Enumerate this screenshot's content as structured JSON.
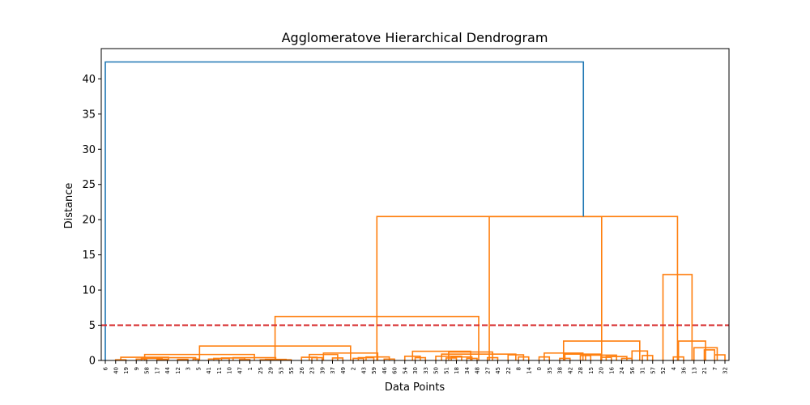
{
  "chart_data": {
    "type": "dendrogram",
    "title": "Agglomeratove Hierarchical Dendrogram",
    "xlabel": "Data Points",
    "ylabel": "Distance",
    "ylim": [
      0,
      44.3
    ],
    "y_ticks": [
      0,
      5,
      10,
      15,
      20,
      25,
      30,
      35,
      40
    ],
    "threshold": 5,
    "colors": {
      "above_threshold": "#1f77b4",
      "cluster": "#ff7f0e",
      "threshold": "#d62728"
    },
    "leaves": [
      "6",
      "40",
      "19",
      "9",
      "58",
      "17",
      "44",
      "12",
      "3",
      "5",
      "41",
      "11",
      "10",
      "47",
      "1",
      "25",
      "29",
      "53",
      "55",
      "26",
      "23",
      "39",
      "37",
      "49",
      "2",
      "43",
      "59",
      "46",
      "60",
      "54",
      "30",
      "33",
      "50",
      "51",
      "18",
      "34",
      "48",
      "27",
      "45",
      "22",
      "8",
      "14",
      "0",
      "35",
      "38",
      "42",
      "28",
      "15",
      "20",
      "16",
      "24",
      "56",
      "31",
      "57",
      "52",
      "4",
      "36",
      "13",
      "21",
      "7",
      "32"
    ],
    "links": [
      {
        "a": [
          3,
          4
        ],
        "h": 0.2
      },
      {
        "a": [
          5,
          6
        ],
        "h": 0.15
      },
      {
        "a": [
          7,
          8
        ],
        "h": 0.15
      },
      {
        "a": [
          8.5,
          9
        ],
        "h": 0.2
      },
      {
        "a": [
          3.5,
          5.5
        ],
        "h": 0.3
      },
      {
        "a": [
          3.5,
          8.75
        ],
        "h": 0.4
      },
      {
        "a": [
          1,
          2
        ],
        "h": 0.1
      },
      {
        "a": [
          1.5,
          6.125
        ],
        "h": 0.45
      },
      {
        "a": [
          10,
          11
        ],
        "h": 0.2
      },
      {
        "a": [
          10.5,
          12
        ],
        "h": 0.3
      },
      {
        "a": [
          13,
          14
        ],
        "h": 0.12
      },
      {
        "a": [
          11.25,
          13.5
        ],
        "h": 0.35
      },
      {
        "a": [
          15,
          16
        ],
        "h": 0.1
      },
      {
        "a": [
          17,
          18
        ],
        "h": 0.1
      },
      {
        "a": [
          15.5,
          17.5
        ],
        "h": 0.15
      },
      {
        "a": [
          12.375,
          16.5
        ],
        "h": 0.4
      },
      {
        "a": [
          3.8125,
          14.4375
        ],
        "h": 0.85
      },
      {
        "a": [
          20,
          21
        ],
        "h": 0.4
      },
      {
        "a": [
          19,
          20.5
        ],
        "h": 0.45
      },
      {
        "a": [
          22,
          23
        ],
        "h": 0.35
      },
      {
        "a": [
          19.75,
          22.5
        ],
        "h": 0.85
      },
      {
        "a": [
          24,
          25
        ],
        "h": 0.3
      },
      {
        "a": [
          24.5,
          26
        ],
        "h": 0.4
      },
      {
        "a": [
          27,
          28
        ],
        "h": 0.2
      },
      {
        "a": [
          25.25,
          27.5
        ],
        "h": 0.5
      },
      {
        "a": [
          21.125,
          26.375
        ],
        "h": 1.05
      },
      {
        "a": [
          9.125,
          23.75
        ],
        "h": 2.05
      },
      {
        "a": [
          30,
          31
        ],
        "h": 0.4
      },
      {
        "a": [
          29,
          30.5
        ],
        "h": 0.6
      },
      {
        "a": [
          33,
          34
        ],
        "h": 0.35
      },
      {
        "a": [
          35,
          36
        ],
        "h": 0.3
      },
      {
        "a": [
          33.5,
          35.5
        ],
        "h": 0.5
      },
      {
        "a": [
          32,
          34.5
        ],
        "h": 0.6
      },
      {
        "a": [
          37,
          38
        ],
        "h": 0.4
      },
      {
        "a": [
          33.25,
          37.5
        ],
        "h": 1.2
      },
      {
        "a": [
          29.75,
          35.375
        ],
        "h": 1.3
      },
      {
        "a": [
          40,
          41
        ],
        "h": 0.5
      },
      {
        "a": [
          39,
          40.5
        ],
        "h": 0.8
      },
      {
        "a": [
          32.5625,
          39.75
        ],
        "h": 0.9
      },
      {
        "a": [
          16.4375,
          36.15625
        ],
        "h": 6.25
      },
      {
        "a": [
          42,
          43
        ],
        "h": 0.5
      },
      {
        "a": [
          44,
          45
        ],
        "h": 0.3
      },
      {
        "a": [
          46,
          47
        ],
        "h": 0.7
      },
      {
        "a": [
          48,
          49
        ],
        "h": 0.45
      },
      {
        "a": [
          50,
          51
        ],
        "h": 0.3
      },
      {
        "a": [
          48.5,
          50.5
        ],
        "h": 0.55
      },
      {
        "a": [
          46.5,
          49.5
        ],
        "h": 0.75
      },
      {
        "a": [
          44.5,
          48
        ],
        "h": 0.9
      },
      {
        "a": [
          42.5,
          46.25
        ],
        "h": 1.05
      },
      {
        "a": [
          52,
          53
        ],
        "h": 0.7
      },
      {
        "a": [
          51,
          52.5
        ],
        "h": 1.35
      },
      {
        "a": [
          44.375,
          51.75
        ],
        "h": 2.75
      },
      {
        "a": [
          26.296875,
          48.0625
        ],
        "h": 20.45
      },
      {
        "a": [
          55,
          56
        ],
        "h": 0.5
      },
      {
        "a": [
          58,
          59
        ],
        "h": 1.5
      },
      {
        "a": [
          59,
          60
        ],
        "h": 0.8
      },
      {
        "a": [
          59.5,
          59.5
        ],
        "h": 0
      },
      {
        "a": [
          57,
          59.25
        ],
        "h": 1.8
      },
      {
        "a": [
          55.5,
          58.125
        ],
        "h": 2.75
      },
      {
        "a": [
          54,
          56.8125
        ],
        "h": 12.2
      },
      {
        "a": [
          37.1796875,
          55.40625
        ],
        "h": 20.45
      },
      {
        "a": [
          0,
          46.29296875
        ],
        "h": 42.4
      }
    ]
  }
}
